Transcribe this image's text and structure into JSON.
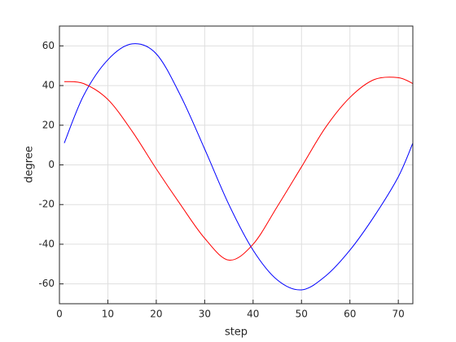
{
  "chart_data": {
    "type": "line",
    "x_label": "step",
    "y_label": "degree",
    "x": [
      1,
      5,
      10,
      15,
      20,
      25,
      30,
      35,
      40,
      45,
      50,
      55,
      60,
      65,
      70,
      73
    ],
    "series": [
      {
        "color": "#0000ff",
        "values": [
          11,
          35,
          53,
          61,
          56,
          35,
          8,
          -20,
          -43,
          -58,
          -63,
          -56,
          -43,
          -26,
          -6,
          11
        ]
      },
      {
        "color": "#ff0000",
        "values": [
          42,
          41,
          33,
          17,
          -2,
          -20,
          -37,
          -48,
          -40,
          -21,
          -1,
          19,
          34,
          43,
          44,
          41
        ]
      }
    ],
    "xlim": [
      0,
      73
    ],
    "xticks": [
      0,
      10,
      20,
      30,
      40,
      50,
      60,
      70
    ],
    "ylim": [
      -70,
      70
    ],
    "yticks": [
      -60,
      -40,
      -20,
      0,
      20,
      40,
      60
    ],
    "grid": true
  }
}
